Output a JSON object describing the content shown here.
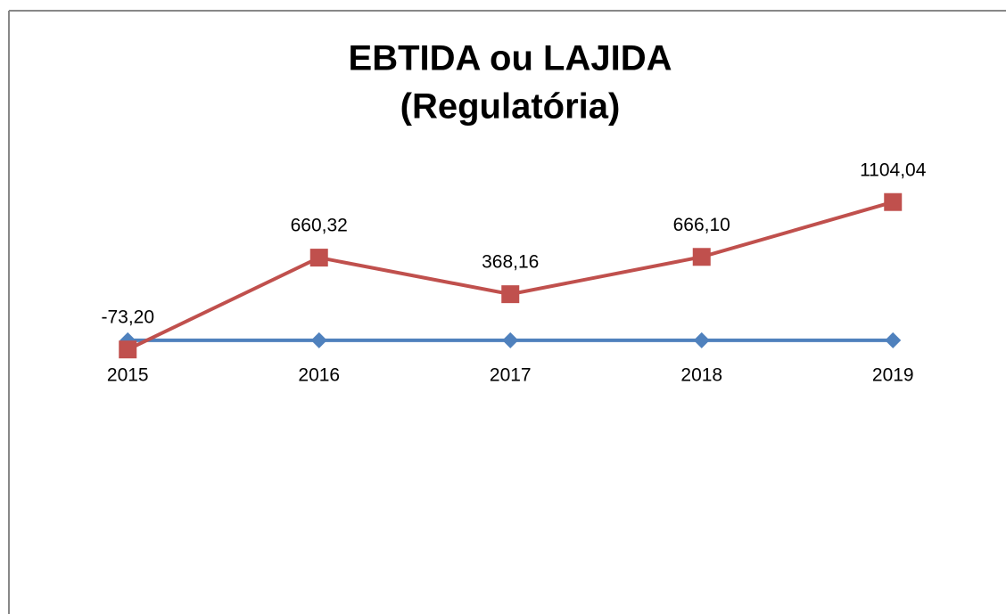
{
  "chart_data": {
    "type": "line",
    "title": [
      "EBTIDA ou LAJIDA",
      "(Regulatória)"
    ],
    "categories": [
      "2015",
      "2016",
      "2017",
      "2018",
      "2019"
    ],
    "series": [
      {
        "color": "#4f81bd",
        "marker": "diamond",
        "values": [
          0,
          0,
          0,
          0,
          0
        ]
      },
      {
        "color": "#c0504d",
        "marker": "square",
        "values": [
          -73.2,
          660.32,
          368.16,
          666.1,
          1104.04
        ],
        "value_labels": [
          "-73,20",
          "660,32",
          "368,16",
          "666,10",
          "1104,04"
        ]
      }
    ],
    "ylim": [
      -2100,
      1650
    ]
  }
}
